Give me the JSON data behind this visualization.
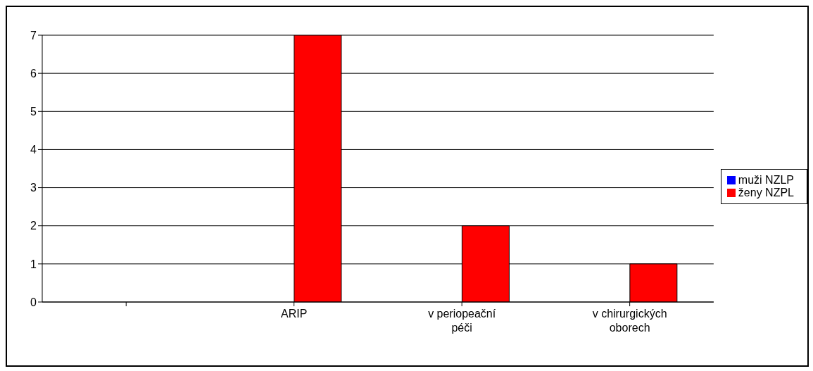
{
  "chart_data": {
    "type": "bar",
    "categories": [
      null,
      "ARIP",
      "v periopeační péči",
      "v chirurgických oborech"
    ],
    "series": [
      {
        "name": "muži NZLP",
        "color": "#0000ff",
        "values": [
          null,
          0,
          0,
          0
        ]
      },
      {
        "name": "ženy NZPL",
        "color": "#ff0000",
        "values": [
          null,
          7,
          2,
          1
        ]
      }
    ],
    "ylim": [
      0,
      7
    ],
    "yticks": [
      0,
      1,
      2,
      3,
      4,
      5,
      6,
      7
    ],
    "grid": "y",
    "legend": "right"
  }
}
